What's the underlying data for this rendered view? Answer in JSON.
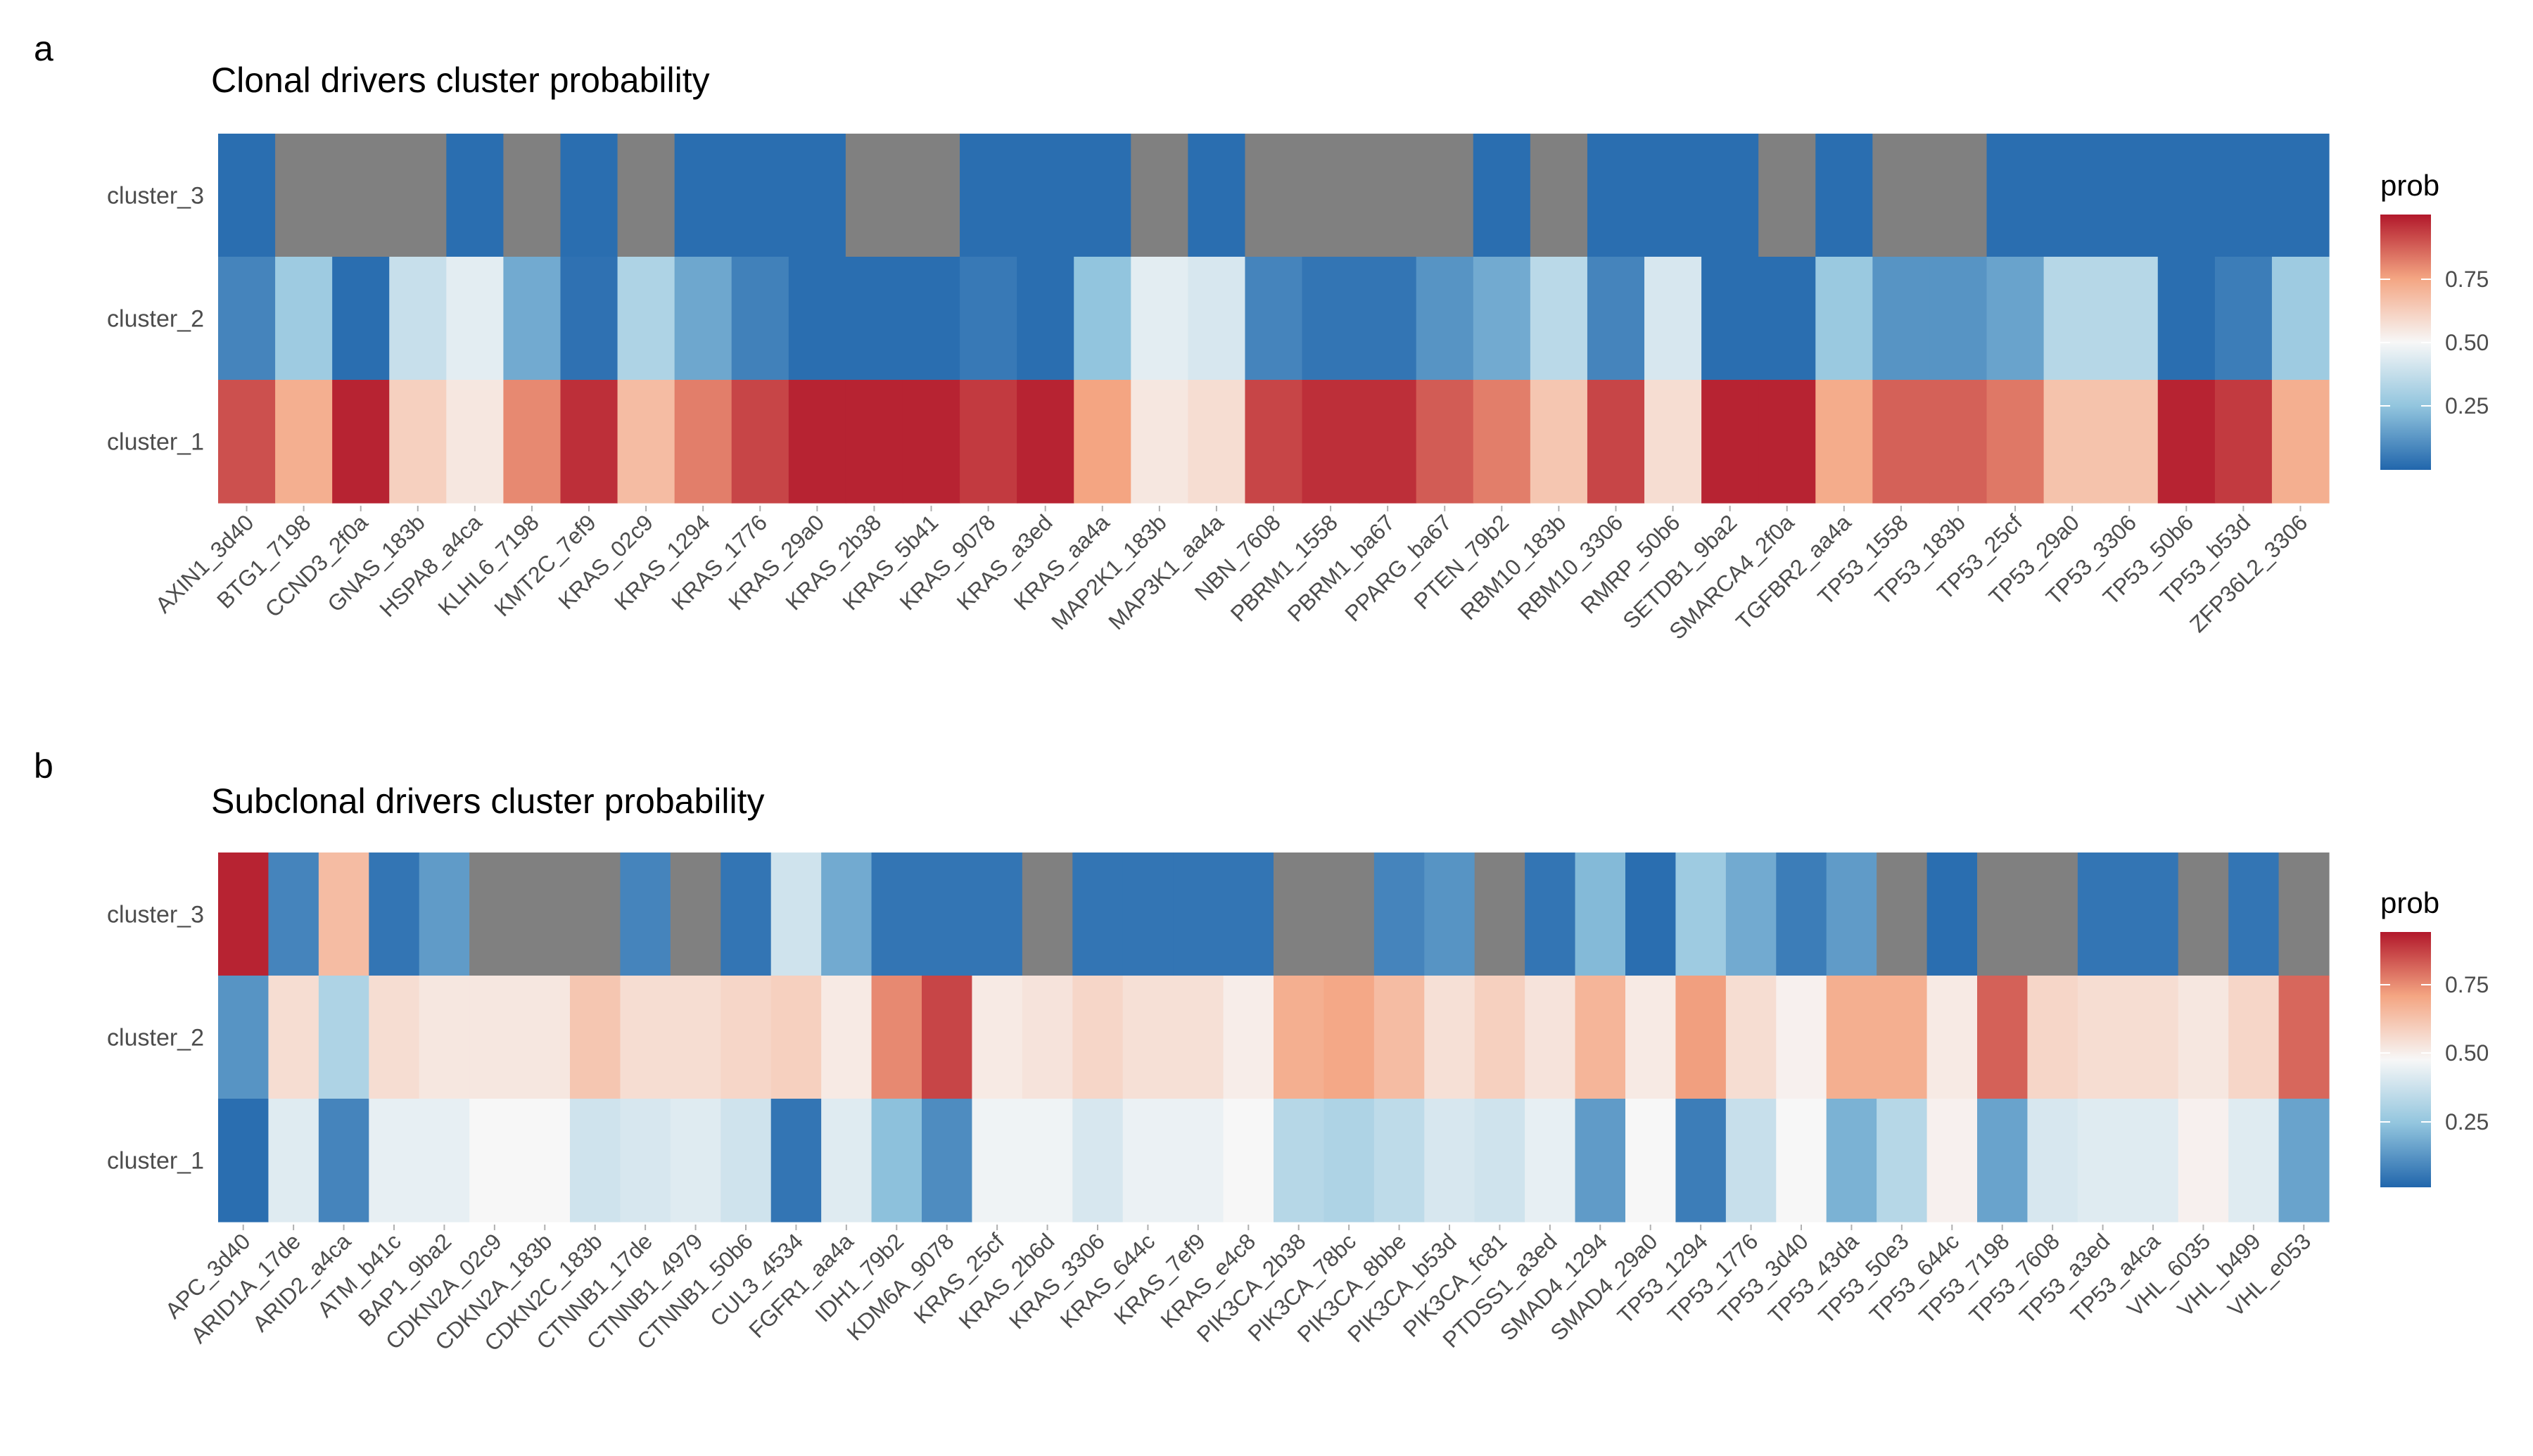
{
  "panel_a": {
    "letter": "a",
    "title": "Clonal drivers cluster probability",
    "legend_title": "prob",
    "legend_ticks": [
      "0.25",
      "0.50",
      "0.75"
    ]
  },
  "panel_b": {
    "letter": "b",
    "title": "Subclonal drivers cluster probability",
    "legend_title": "prob",
    "legend_ticks": [
      "0.25",
      "0.50",
      "0.75"
    ]
  },
  "colors": {
    "na": "#808080",
    "low": "#2166ac",
    "mid": "#f7f7f7",
    "high": "#b2182b"
  },
  "chart_data": [
    {
      "type": "heatmap",
      "title": "Clonal drivers cluster probability",
      "legend_title": "prob",
      "legend_ticks": [
        0.25,
        0.5,
        0.75
      ],
      "rows": [
        "cluster_3",
        "cluster_2",
        "cluster_1"
      ],
      "columns": [
        "AXIN1_3d40",
        "BTG1_7198",
        "CCND3_2f0a",
        "GNAS_183b",
        "HSPA8_a4ca",
        "KLHL6_7198",
        "KMT2C_7ef9",
        "KRAS_02c9",
        "KRAS_1294",
        "KRAS_1776",
        "KRAS_29a0",
        "KRAS_2b38",
        "KRAS_5b41",
        "KRAS_9078",
        "KRAS_a3ed",
        "KRAS_aa4a",
        "MAP2K1_183b",
        "MAP3K1_aa4a",
        "NBN_7608",
        "PBRM1_1558",
        "PBRM1_ba67",
        "PPARG_ba67",
        "PTEN_79b2",
        "RBM10_183b",
        "RBM10_3306",
        "RMRP_50b6",
        "SETDB1_9ba2",
        "SMARCA4_2f0a",
        "TGFBR2_aa4a",
        "TP53_1558",
        "TP53_183b",
        "TP53_25cf",
        "TP53_29a0",
        "TP53_3306",
        "TP53_50b6",
        "TP53_b53d",
        "ZFP36L2_3306"
      ],
      "values": {
        "cluster_3": [
          0.02,
          null,
          null,
          null,
          0.02,
          null,
          0.02,
          null,
          0.02,
          0.02,
          0.02,
          null,
          null,
          0.02,
          0.02,
          0.02,
          null,
          0.02,
          null,
          null,
          null,
          null,
          0.02,
          null,
          0.02,
          0.02,
          0.02,
          null,
          0.02,
          null,
          null,
          0.02,
          0.02,
          0.02,
          0.02,
          0.02,
          0.02
        ],
        "cluster_2": [
          0.08,
          0.28,
          0.02,
          0.38,
          0.45,
          0.18,
          0.03,
          0.32,
          0.17,
          0.07,
          0.02,
          0.02,
          0.02,
          0.05,
          0.02,
          0.25,
          0.45,
          0.42,
          0.08,
          0.04,
          0.04,
          0.12,
          0.18,
          0.35,
          0.08,
          0.42,
          0.02,
          0.02,
          0.27,
          0.12,
          0.12,
          0.16,
          0.34,
          0.34,
          0.02,
          0.06,
          0.28
        ],
        "cluster_1": [
          0.9,
          0.72,
          0.98,
          0.62,
          0.55,
          0.8,
          0.96,
          0.68,
          0.82,
          0.92,
          0.98,
          0.98,
          0.98,
          0.94,
          0.98,
          0.75,
          0.55,
          0.58,
          0.92,
          0.96,
          0.96,
          0.88,
          0.82,
          0.65,
          0.92,
          0.58,
          0.98,
          0.98,
          0.73,
          0.87,
          0.87,
          0.83,
          0.66,
          0.66,
          0.98,
          0.94,
          0.72
        ]
      }
    },
    {
      "type": "heatmap",
      "title": "Subclonal drivers cluster probability",
      "legend_title": "prob",
      "legend_ticks": [
        0.25,
        0.5,
        0.75
      ],
      "rows": [
        "cluster_3",
        "cluster_2",
        "cluster_1"
      ],
      "columns": [
        "APC_3d40",
        "ARID1A_17de",
        "ARID2_a4ca",
        "ATM_b41c",
        "BAP1_9ba2",
        "CDKN2A_02c9",
        "CDKN2A_183b",
        "CDKN2C_183b",
        "CTNNB1_17de",
        "CTNNB1_4979",
        "CTNNB1_50b6",
        "CUL3_4534",
        "FGFR1_aa4a",
        "IDH1_79b2",
        "KDM6A_9078",
        "KRAS_25cf",
        "KRAS_2b6d",
        "KRAS_3306",
        "KRAS_644c",
        "KRAS_7ef9",
        "KRAS_e4c8",
        "PIK3CA_2b38",
        "PIK3CA_78bc",
        "PIK3CA_8bbe",
        "PIK3CA_b53d",
        "PIK3CA_fc81",
        "PTDSS1_a3ed",
        "SMAD4_1294",
        "SMAD4_29a0",
        "TP53_1294",
        "TP53_1776",
        "TP53_3d40",
        "TP53_43da",
        "TP53_50e3",
        "TP53_644c",
        "TP53_7198",
        "TP53_7608",
        "TP53_a3ed",
        "TP53_a4ca",
        "VHL_6035",
        "VHL_b499",
        "VHL_e053"
      ],
      "values": {
        "cluster_3": [
          0.98,
          0.08,
          0.68,
          0.04,
          0.14,
          null,
          null,
          null,
          0.08,
          null,
          0.04,
          0.4,
          0.18,
          0.04,
          0.04,
          0.04,
          null,
          0.04,
          0.04,
          0.04,
          0.04,
          null,
          null,
          0.08,
          0.12,
          null,
          0.04,
          0.22,
          0.02,
          0.28,
          0.18,
          0.06,
          0.14,
          null,
          0.02,
          null,
          null,
          0.04,
          0.04,
          null,
          0.04,
          null
        ],
        "cluster_2": [
          0.12,
          0.58,
          0.32,
          0.58,
          0.55,
          0.55,
          0.55,
          0.65,
          0.58,
          0.58,
          0.6,
          0.62,
          0.54,
          0.8,
          0.92,
          0.54,
          0.56,
          0.6,
          0.57,
          0.57,
          0.53,
          0.72,
          0.74,
          0.68,
          0.57,
          0.62,
          0.56,
          0.7,
          0.54,
          0.76,
          0.58,
          0.52,
          0.72,
          0.72,
          0.54,
          0.87,
          0.6,
          0.58,
          0.58,
          0.55,
          0.6,
          0.86
        ],
        "cluster_1": [
          0.02,
          0.44,
          0.08,
          0.46,
          0.46,
          0.5,
          0.5,
          0.4,
          0.42,
          0.44,
          0.4,
          0.04,
          0.44,
          0.24,
          0.1,
          0.48,
          0.48,
          0.42,
          0.47,
          0.47,
          0.5,
          0.34,
          0.32,
          0.36,
          0.42,
          0.4,
          0.46,
          0.14,
          0.5,
          0.06,
          0.38,
          0.5,
          0.2,
          0.34,
          0.52,
          0.16,
          0.42,
          0.44,
          0.44,
          0.52,
          0.44,
          0.16
        ]
      }
    }
  ]
}
